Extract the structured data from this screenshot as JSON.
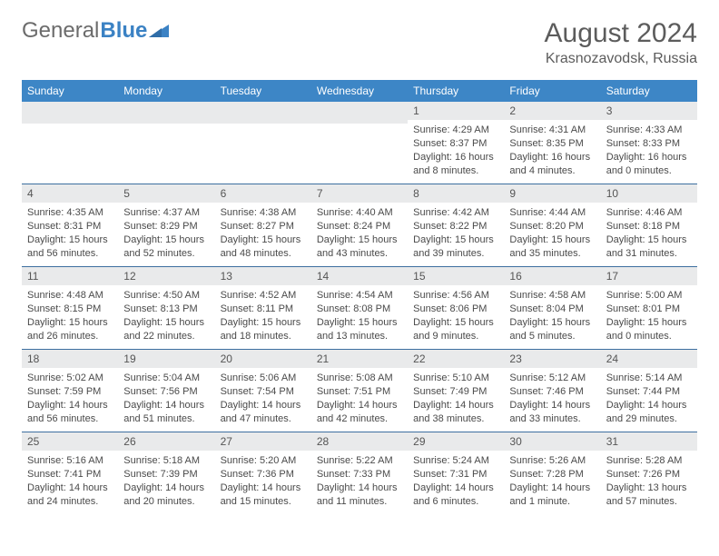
{
  "brand": {
    "part1": "General",
    "part2": "Blue"
  },
  "colors": {
    "accent": "#3d86c6",
    "sep": "#3d6fa0",
    "dayband": "#e9eaeb",
    "text": "#4a4a4a",
    "heading": "#5c5c5c"
  },
  "title": "August 2024",
  "location": "Krasnozavodsk, Russia",
  "daynames": [
    "Sunday",
    "Monday",
    "Tuesday",
    "Wednesday",
    "Thursday",
    "Friday",
    "Saturday"
  ],
  "weeks": [
    [
      {
        "n": "",
        "sr": "",
        "ss": "",
        "dl": ""
      },
      {
        "n": "",
        "sr": "",
        "ss": "",
        "dl": ""
      },
      {
        "n": "",
        "sr": "",
        "ss": "",
        "dl": ""
      },
      {
        "n": "",
        "sr": "",
        "ss": "",
        "dl": ""
      },
      {
        "n": "1",
        "sr": "Sunrise: 4:29 AM",
        "ss": "Sunset: 8:37 PM",
        "dl": "Daylight: 16 hours and 8 minutes."
      },
      {
        "n": "2",
        "sr": "Sunrise: 4:31 AM",
        "ss": "Sunset: 8:35 PM",
        "dl": "Daylight: 16 hours and 4 minutes."
      },
      {
        "n": "3",
        "sr": "Sunrise: 4:33 AM",
        "ss": "Sunset: 8:33 PM",
        "dl": "Daylight: 16 hours and 0 minutes."
      }
    ],
    [
      {
        "n": "4",
        "sr": "Sunrise: 4:35 AM",
        "ss": "Sunset: 8:31 PM",
        "dl": "Daylight: 15 hours and 56 minutes."
      },
      {
        "n": "5",
        "sr": "Sunrise: 4:37 AM",
        "ss": "Sunset: 8:29 PM",
        "dl": "Daylight: 15 hours and 52 minutes."
      },
      {
        "n": "6",
        "sr": "Sunrise: 4:38 AM",
        "ss": "Sunset: 8:27 PM",
        "dl": "Daylight: 15 hours and 48 minutes."
      },
      {
        "n": "7",
        "sr": "Sunrise: 4:40 AM",
        "ss": "Sunset: 8:24 PM",
        "dl": "Daylight: 15 hours and 43 minutes."
      },
      {
        "n": "8",
        "sr": "Sunrise: 4:42 AM",
        "ss": "Sunset: 8:22 PM",
        "dl": "Daylight: 15 hours and 39 minutes."
      },
      {
        "n": "9",
        "sr": "Sunrise: 4:44 AM",
        "ss": "Sunset: 8:20 PM",
        "dl": "Daylight: 15 hours and 35 minutes."
      },
      {
        "n": "10",
        "sr": "Sunrise: 4:46 AM",
        "ss": "Sunset: 8:18 PM",
        "dl": "Daylight: 15 hours and 31 minutes."
      }
    ],
    [
      {
        "n": "11",
        "sr": "Sunrise: 4:48 AM",
        "ss": "Sunset: 8:15 PM",
        "dl": "Daylight: 15 hours and 26 minutes."
      },
      {
        "n": "12",
        "sr": "Sunrise: 4:50 AM",
        "ss": "Sunset: 8:13 PM",
        "dl": "Daylight: 15 hours and 22 minutes."
      },
      {
        "n": "13",
        "sr": "Sunrise: 4:52 AM",
        "ss": "Sunset: 8:11 PM",
        "dl": "Daylight: 15 hours and 18 minutes."
      },
      {
        "n": "14",
        "sr": "Sunrise: 4:54 AM",
        "ss": "Sunset: 8:08 PM",
        "dl": "Daylight: 15 hours and 13 minutes."
      },
      {
        "n": "15",
        "sr": "Sunrise: 4:56 AM",
        "ss": "Sunset: 8:06 PM",
        "dl": "Daylight: 15 hours and 9 minutes."
      },
      {
        "n": "16",
        "sr": "Sunrise: 4:58 AM",
        "ss": "Sunset: 8:04 PM",
        "dl": "Daylight: 15 hours and 5 minutes."
      },
      {
        "n": "17",
        "sr": "Sunrise: 5:00 AM",
        "ss": "Sunset: 8:01 PM",
        "dl": "Daylight: 15 hours and 0 minutes."
      }
    ],
    [
      {
        "n": "18",
        "sr": "Sunrise: 5:02 AM",
        "ss": "Sunset: 7:59 PM",
        "dl": "Daylight: 14 hours and 56 minutes."
      },
      {
        "n": "19",
        "sr": "Sunrise: 5:04 AM",
        "ss": "Sunset: 7:56 PM",
        "dl": "Daylight: 14 hours and 51 minutes."
      },
      {
        "n": "20",
        "sr": "Sunrise: 5:06 AM",
        "ss": "Sunset: 7:54 PM",
        "dl": "Daylight: 14 hours and 47 minutes."
      },
      {
        "n": "21",
        "sr": "Sunrise: 5:08 AM",
        "ss": "Sunset: 7:51 PM",
        "dl": "Daylight: 14 hours and 42 minutes."
      },
      {
        "n": "22",
        "sr": "Sunrise: 5:10 AM",
        "ss": "Sunset: 7:49 PM",
        "dl": "Daylight: 14 hours and 38 minutes."
      },
      {
        "n": "23",
        "sr": "Sunrise: 5:12 AM",
        "ss": "Sunset: 7:46 PM",
        "dl": "Daylight: 14 hours and 33 minutes."
      },
      {
        "n": "24",
        "sr": "Sunrise: 5:14 AM",
        "ss": "Sunset: 7:44 PM",
        "dl": "Daylight: 14 hours and 29 minutes."
      }
    ],
    [
      {
        "n": "25",
        "sr": "Sunrise: 5:16 AM",
        "ss": "Sunset: 7:41 PM",
        "dl": "Daylight: 14 hours and 24 minutes."
      },
      {
        "n": "26",
        "sr": "Sunrise: 5:18 AM",
        "ss": "Sunset: 7:39 PM",
        "dl": "Daylight: 14 hours and 20 minutes."
      },
      {
        "n": "27",
        "sr": "Sunrise: 5:20 AM",
        "ss": "Sunset: 7:36 PM",
        "dl": "Daylight: 14 hours and 15 minutes."
      },
      {
        "n": "28",
        "sr": "Sunrise: 5:22 AM",
        "ss": "Sunset: 7:33 PM",
        "dl": "Daylight: 14 hours and 11 minutes."
      },
      {
        "n": "29",
        "sr": "Sunrise: 5:24 AM",
        "ss": "Sunset: 7:31 PM",
        "dl": "Daylight: 14 hours and 6 minutes."
      },
      {
        "n": "30",
        "sr": "Sunrise: 5:26 AM",
        "ss": "Sunset: 7:28 PM",
        "dl": "Daylight: 14 hours and 1 minute."
      },
      {
        "n": "31",
        "sr": "Sunrise: 5:28 AM",
        "ss": "Sunset: 7:26 PM",
        "dl": "Daylight: 13 hours and 57 minutes."
      }
    ]
  ]
}
